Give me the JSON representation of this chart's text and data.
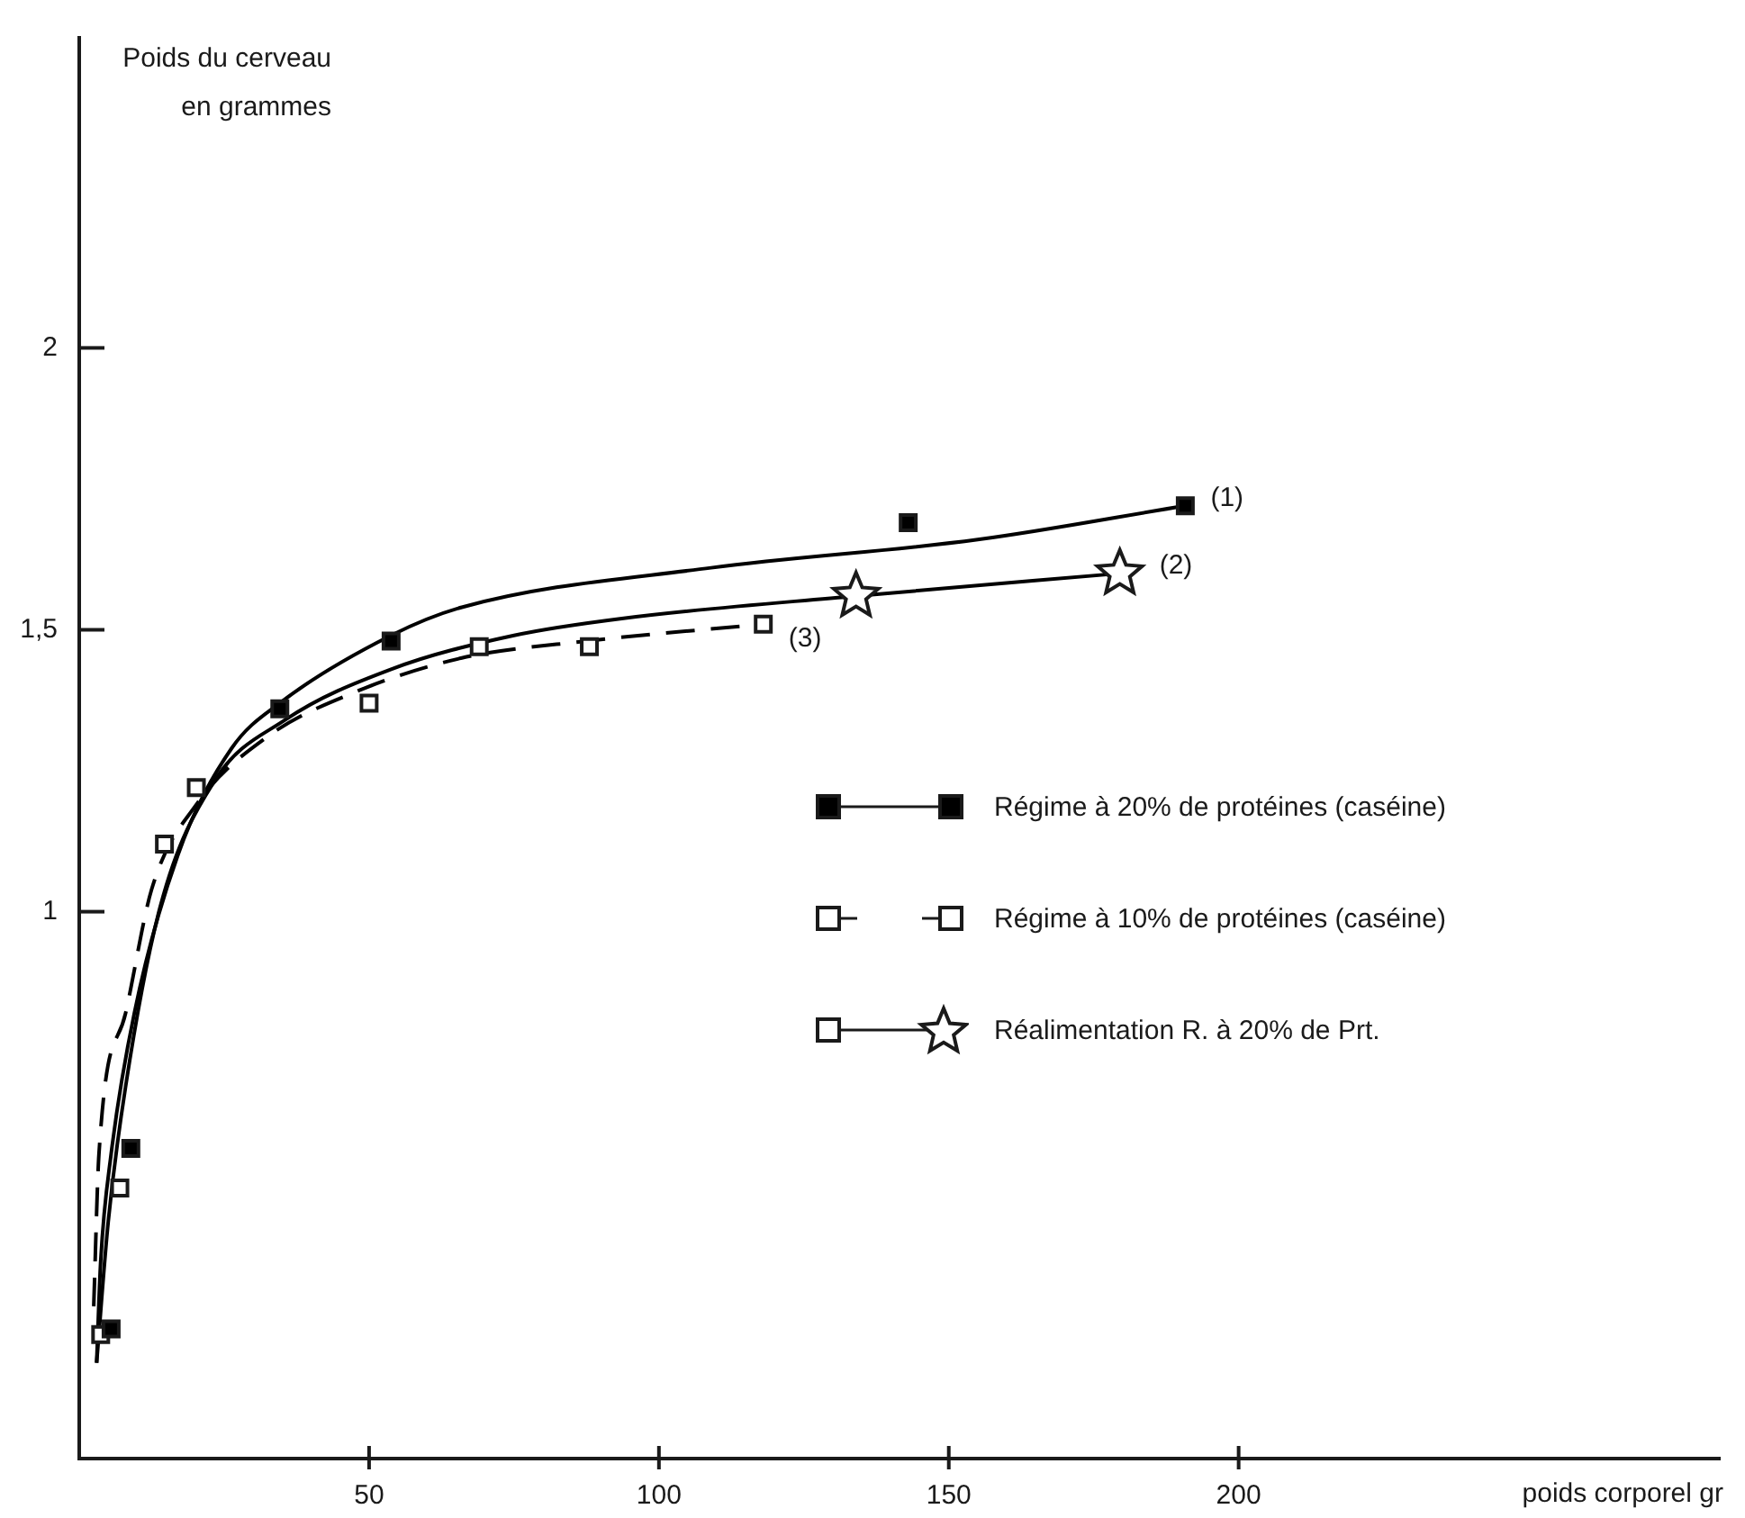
{
  "chart_data": {
    "type": "scatter",
    "xlabel": "poids corporel gr",
    "ylabel": "Poids du cerveau en grammes",
    "xlim": [
      0,
      283
    ],
    "ylim": [
      0.03,
      2.55
    ],
    "xticks": [
      50,
      100,
      150,
      200
    ],
    "yticks": [
      1,
      {
        "value": 1.5,
        "label": "1,5"
      },
      2
    ],
    "legend": "right",
    "series": [
      {
        "name": "Régime à 20% de protéines (caséine)",
        "marker": "square",
        "line_style": "solid",
        "color": "#000000",
        "x": [
          5.5,
          8.9,
          34.6,
          53.8,
          143,
          190.8
        ],
        "values": [
          0.26,
          0.58,
          1.36,
          1.48,
          1.69,
          1.72
        ]
      },
      {
        "name": "Régime à 10% de protéines (caséine)",
        "marker": "square",
        "line_style": "dashed",
        "color": "#ffffff",
        "x": [
          3.7,
          7,
          14.7,
          20.2,
          50,
          69,
          88,
          118
        ],
        "values": [
          0.25,
          0.51,
          1.12,
          1.22,
          1.37,
          1.47,
          1.47,
          1.51
        ]
      },
      {
        "name": "Réalimentation R. à 20% de Prt.",
        "marker": "star",
        "line_style": "solid",
        "color": "#ffffff",
        "x": [
          134,
          179.5
        ],
        "values": [
          1.56,
          1.6
        ]
      },
      {
        "type": "line",
        "marker": "none",
        "line_style": "solid",
        "color": "#000000",
        "x": [
          3,
          3.7,
          5.5,
          9.5,
          17,
          26.3,
          34.6,
          53.8,
          66,
          109,
          155,
          190.8
        ],
        "values": [
          0.2,
          0.38,
          0.57,
          0.82,
          1.1,
          1.29,
          1.37,
          1.49,
          1.54,
          1.61,
          1.66,
          1.72
        ]
      },
      {
        "type": "line",
        "marker": "none",
        "line_style": "solid",
        "color": "#000000",
        "x": [
          3,
          5,
          8,
          14,
          23.2,
          35.5,
          53.8,
          75,
          93.6,
          134,
          179.5
        ],
        "values": [
          0.2,
          0.45,
          0.69,
          1.01,
          1.23,
          1.34,
          1.43,
          1.49,
          1.52,
          1.56,
          1.6
        ]
      },
      {
        "type": "line",
        "marker": "none",
        "line_style": "dashed",
        "color": "#000000",
        "x": [
          2.5,
          3.4,
          8,
          12.5,
          20.2,
          32.4,
          47.7,
          66,
          87.5,
          118
        ],
        "values": [
          0.3,
          0.57,
          0.82,
          1.04,
          1.19,
          1.31,
          1.39,
          1.45,
          1.48,
          1.51
        ]
      }
    ],
    "annotations": [
      "(1)",
      "(2)",
      "(3)"
    ]
  }
}
